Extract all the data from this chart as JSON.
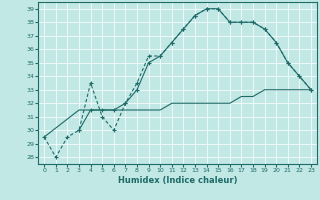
{
  "xlabel": "Humidex (Indice chaleur)",
  "xlim": [
    -0.5,
    23.5
  ],
  "ylim": [
    27.5,
    39.5
  ],
  "yticks": [
    28,
    29,
    30,
    31,
    32,
    33,
    34,
    35,
    36,
    37,
    38,
    39
  ],
  "xticks": [
    0,
    1,
    2,
    3,
    4,
    5,
    6,
    7,
    8,
    9,
    10,
    11,
    12,
    13,
    14,
    15,
    16,
    17,
    18,
    19,
    20,
    21,
    22,
    23
  ],
  "bg_color": "#c2e8e5",
  "grid_color": "#acd8d5",
  "line_color": "#1e6b68",
  "line1_x": [
    0,
    1,
    2,
    3,
    4,
    5,
    6,
    7,
    8,
    9,
    10,
    11,
    12,
    13,
    14,
    15,
    16,
    17,
    18,
    19,
    20,
    21,
    22,
    23
  ],
  "line1_y": [
    29.5,
    28.0,
    29.5,
    30.0,
    33.5,
    31.0,
    30.0,
    32.0,
    33.5,
    35.5,
    35.5,
    36.5,
    37.5,
    38.5,
    39.0,
    39.0,
    38.0,
    38.0,
    38.0,
    37.5,
    36.5,
    35.0,
    34.0,
    33.0
  ],
  "line2_x": [
    3,
    4,
    5,
    6,
    7,
    8,
    9,
    10,
    11,
    12,
    13,
    14,
    15,
    16,
    17,
    18,
    19,
    20,
    21,
    22,
    23
  ],
  "line2_y": [
    30.0,
    31.5,
    31.5,
    31.5,
    32.0,
    33.0,
    35.0,
    35.5,
    36.5,
    37.5,
    38.5,
    39.0,
    39.0,
    38.0,
    38.0,
    38.0,
    37.5,
    36.5,
    35.0,
    34.0,
    33.0
  ],
  "line3_x": [
    0,
    3,
    4,
    5,
    6,
    7,
    8,
    9,
    10,
    11,
    12,
    13,
    14,
    15,
    16,
    17,
    18,
    19,
    20,
    21,
    22,
    23
  ],
  "line3_y": [
    29.5,
    31.5,
    31.5,
    31.5,
    31.5,
    31.5,
    31.5,
    31.5,
    31.5,
    32.0,
    32.0,
    32.0,
    32.0,
    32.0,
    32.0,
    32.5,
    32.5,
    33.0,
    33.0,
    33.0,
    33.0,
    33.0
  ]
}
